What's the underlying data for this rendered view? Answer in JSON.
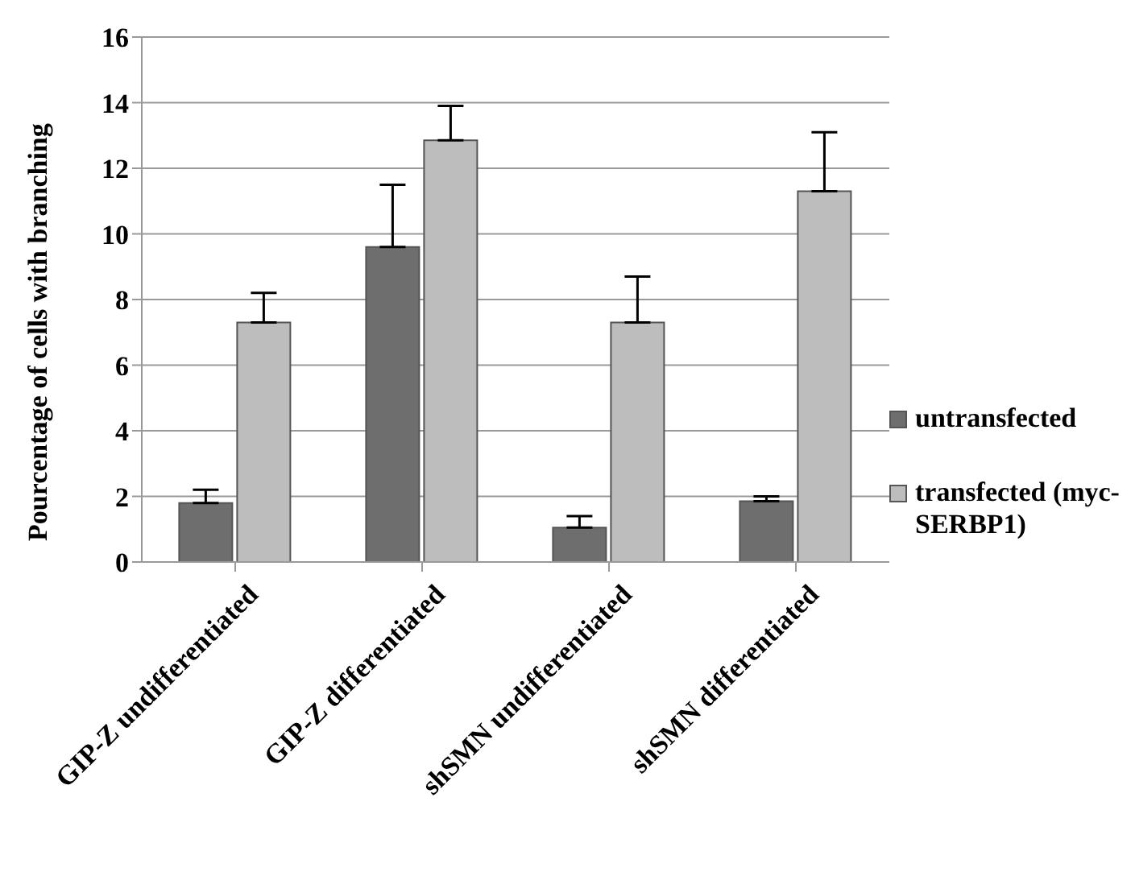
{
  "chart_data": {
    "type": "bar",
    "ylabel": "Pourcentage of cells with branching",
    "categories": [
      "GIP-Z undifferentiated",
      "GIP-Z differentiated",
      "shSMN undifferentiated",
      "shSMN differentiated"
    ],
    "series": [
      {
        "name": "untransfected",
        "color": "#6e6e6e",
        "values": [
          1.8,
          9.6,
          1.05,
          1.85
        ],
        "errors": [
          [
            1.8,
            2.2
          ],
          [
            9.6,
            11.5
          ],
          [
            1.05,
            1.4
          ],
          [
            1.85,
            2.0
          ]
        ]
      },
      {
        "name": "transfected (myc-SERBP1)",
        "color": "#bdbdbd",
        "values": [
          7.3,
          12.85,
          7.3,
          11.3
        ],
        "errors": [
          [
            7.3,
            8.2
          ],
          [
            12.85,
            13.9
          ],
          [
            7.3,
            8.7
          ],
          [
            11.3,
            13.1
          ]
        ]
      }
    ],
    "ylim": [
      0,
      16
    ],
    "yticks": [
      0,
      2,
      4,
      6,
      8,
      10,
      12,
      14,
      16
    ],
    "grid": "y",
    "legend": "right"
  }
}
